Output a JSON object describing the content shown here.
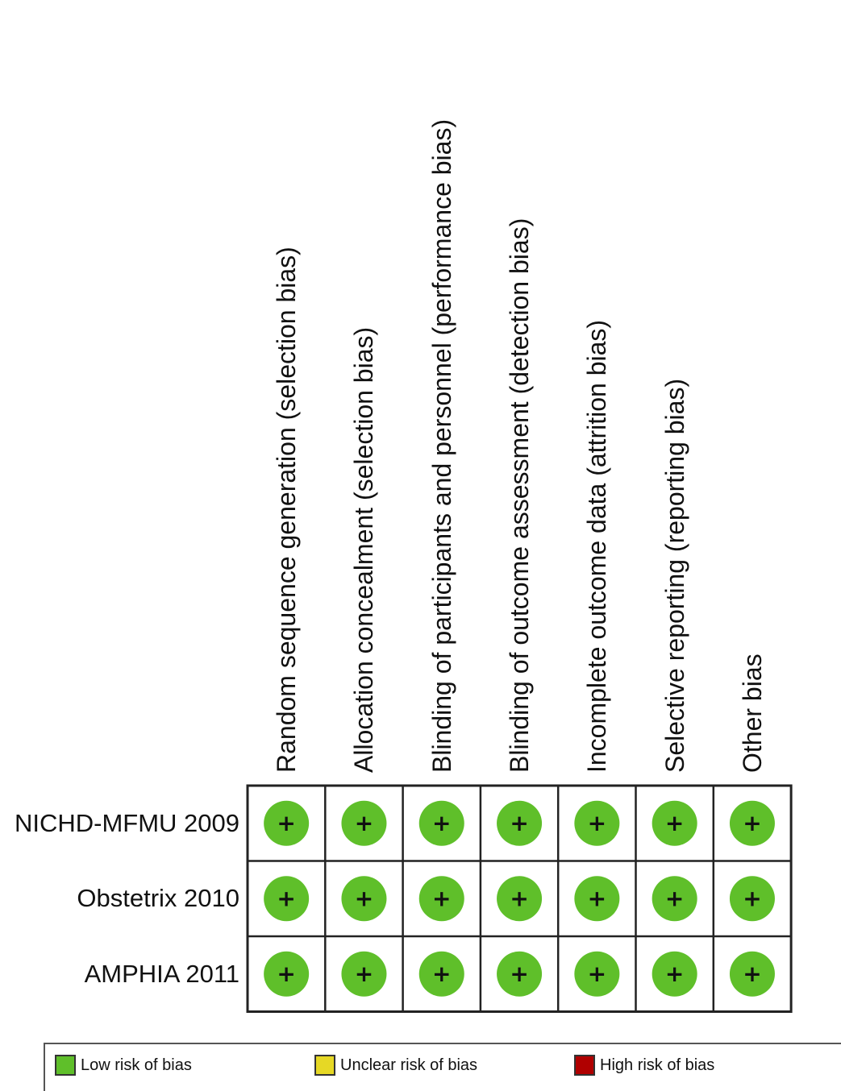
{
  "chart_data": {
    "type": "table",
    "columns": [
      "Random sequence generation (selection bias)",
      "Allocation concealment (selection bias)",
      "Blinding of participants and personnel (performance bias)",
      "Blinding of outcome assessment (detection bias)",
      "Incomplete outcome data (attrition bias)",
      "Selective reporting (reporting bias)",
      "Other bias"
    ],
    "rows": [
      "NICHD-MFMU 2009",
      "Obstetrix 2010",
      "AMPHIA 2011"
    ],
    "cells": [
      [
        "+",
        "+",
        "+",
        "+",
        "+",
        "+",
        "+"
      ],
      [
        "+",
        "+",
        "+",
        "+",
        "+",
        "+",
        "+"
      ],
      [
        "+",
        "+",
        "+",
        "+",
        "+",
        "+",
        "+"
      ]
    ],
    "legend": [
      {
        "label": "Low risk of bias",
        "color": "#5fbf2a"
      },
      {
        "label": "Unclear risk of bias",
        "color": "#e6d825"
      },
      {
        "label": "High risk of bias",
        "color": "#b00000"
      }
    ],
    "legend_placement": "bottom"
  }
}
